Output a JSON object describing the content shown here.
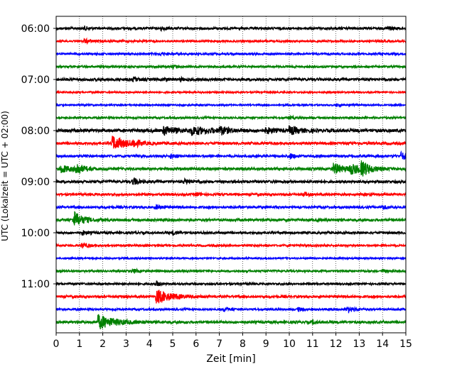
{
  "chart_data": {
    "type": "line",
    "xlabel": "Zeit  [min]",
    "ylabel": "UTC (Lokalzeit = UTC + 02:00)",
    "xlim": [
      0,
      15
    ],
    "x_ticks": [
      "0",
      "1",
      "2",
      "3",
      "4",
      "5",
      "6",
      "7",
      "8",
      "9",
      "10",
      "11",
      "12",
      "13",
      "14",
      "15"
    ],
    "y_tick_labels": [
      "06:00",
      "07:00",
      "08:00",
      "09:00",
      "10:00",
      "11:00"
    ],
    "grid": "vertical-dotted",
    "trace_interval_minutes": 15,
    "trace_colors": [
      "#000000",
      "#ff0000",
      "#0000ff",
      "#008000"
    ],
    "traces": [
      {
        "start": "06:00",
        "color": "#000000",
        "noise": 0.18,
        "events": [
          {
            "t": 1.2,
            "amp": 0.3,
            "dur": 0.15
          },
          {
            "t": 4.5,
            "amp": 0.25,
            "dur": 0.2
          },
          {
            "t": 14.2,
            "amp": 0.3,
            "dur": 0.2
          }
        ]
      },
      {
        "start": "06:15",
        "color": "#ff0000",
        "noise": 0.15,
        "events": [
          {
            "t": 1.2,
            "amp": 0.3,
            "dur": 0.3
          }
        ]
      },
      {
        "start": "06:30",
        "color": "#0000ff",
        "noise": 0.15,
        "events": [
          {
            "t": 4.5,
            "amp": 0.25,
            "dur": 0.15
          }
        ]
      },
      {
        "start": "06:45",
        "color": "#008000",
        "noise": 0.15,
        "events": [
          {
            "t": 5.0,
            "amp": 0.25,
            "dur": 0.2
          }
        ]
      },
      {
        "start": "07:00",
        "color": "#000000",
        "noise": 0.2,
        "events": [
          {
            "t": 3.3,
            "amp": 0.3,
            "dur": 0.2
          },
          {
            "t": 4.6,
            "amp": 0.25,
            "dur": 0.15
          },
          {
            "t": 5.3,
            "amp": 0.25,
            "dur": 0.15
          }
        ]
      },
      {
        "start": "07:15",
        "color": "#ff0000",
        "noise": 0.12,
        "events": []
      },
      {
        "start": "07:30",
        "color": "#0000ff",
        "noise": 0.12,
        "events": [
          {
            "t": 12.0,
            "amp": 0.2,
            "dur": 0.2
          }
        ]
      },
      {
        "start": "07:45",
        "color": "#008000",
        "noise": 0.15,
        "events": [
          {
            "t": 10.0,
            "amp": 0.25,
            "dur": 0.2
          }
        ]
      },
      {
        "start": "08:00",
        "color": "#000000",
        "noise": 0.25,
        "events": [
          {
            "t": 4.6,
            "amp": 0.65,
            "dur": 0.5
          },
          {
            "t": 5.8,
            "amp": 0.55,
            "dur": 0.8
          },
          {
            "t": 7.0,
            "amp": 0.6,
            "dur": 0.3
          },
          {
            "t": 9.0,
            "amp": 0.45,
            "dur": 0.3
          },
          {
            "t": 10.0,
            "amp": 0.6,
            "dur": 0.4
          }
        ]
      },
      {
        "start": "08:15",
        "color": "#ff0000",
        "noise": 0.2,
        "events": [
          {
            "t": 2.4,
            "amp": 1.1,
            "dur": 0.6
          },
          {
            "t": 3.3,
            "amp": 0.5,
            "dur": 0.2
          }
        ]
      },
      {
        "start": "08:30",
        "color": "#0000ff",
        "noise": 0.18,
        "events": [
          {
            "t": 4.9,
            "amp": 0.35,
            "dur": 0.2
          },
          {
            "t": 10.0,
            "amp": 0.45,
            "dur": 0.2
          },
          {
            "t": 14.8,
            "amp": 0.6,
            "dur": 0.3
          }
        ]
      },
      {
        "start": "08:45",
        "color": "#008000",
        "noise": 0.2,
        "events": [
          {
            "t": 0.2,
            "amp": 0.6,
            "dur": 0.4
          },
          {
            "t": 0.85,
            "amp": 1.0,
            "dur": 0.25
          },
          {
            "t": 11.9,
            "amp": 0.9,
            "dur": 0.4
          },
          {
            "t": 12.6,
            "amp": 0.7,
            "dur": 0.6
          },
          {
            "t": 13.1,
            "amp": 1.0,
            "dur": 0.3
          }
        ]
      },
      {
        "start": "09:00",
        "color": "#000000",
        "noise": 0.2,
        "events": [
          {
            "t": 3.3,
            "amp": 0.6,
            "dur": 0.2
          },
          {
            "t": 5.5,
            "amp": 0.3,
            "dur": 0.3
          }
        ]
      },
      {
        "start": "09:15",
        "color": "#ff0000",
        "noise": 0.18,
        "events": [
          {
            "t": 6.0,
            "amp": 0.3,
            "dur": 0.2
          },
          {
            "t": 10.6,
            "amp": 0.3,
            "dur": 0.2
          }
        ]
      },
      {
        "start": "09:30",
        "color": "#0000ff",
        "noise": 0.18,
        "events": [
          {
            "t": 4.3,
            "amp": 0.3,
            "dur": 0.2
          },
          {
            "t": 14.0,
            "amp": 0.3,
            "dur": 0.2
          }
        ]
      },
      {
        "start": "09:45",
        "color": "#008000",
        "noise": 0.2,
        "events": [
          {
            "t": 0.75,
            "amp": 1.4,
            "dur": 0.35
          }
        ]
      },
      {
        "start": "10:00",
        "color": "#000000",
        "noise": 0.18,
        "events": [
          {
            "t": 1.1,
            "amp": 0.35,
            "dur": 0.2
          },
          {
            "t": 5.0,
            "amp": 0.3,
            "dur": 0.2
          }
        ]
      },
      {
        "start": "10:15",
        "color": "#ff0000",
        "noise": 0.15,
        "events": [
          {
            "t": 1.1,
            "amp": 0.35,
            "dur": 0.3
          }
        ]
      },
      {
        "start": "10:30",
        "color": "#0000ff",
        "noise": 0.12,
        "events": []
      },
      {
        "start": "10:45",
        "color": "#008000",
        "noise": 0.15,
        "events": [
          {
            "t": 3.3,
            "amp": 0.3,
            "dur": 0.2
          },
          {
            "t": 14.0,
            "amp": 0.25,
            "dur": 0.15
          }
        ]
      },
      {
        "start": "11:00",
        "color": "#000000",
        "noise": 0.15,
        "events": [
          {
            "t": 4.3,
            "amp": 0.35,
            "dur": 0.2
          }
        ]
      },
      {
        "start": "11:15",
        "color": "#ff0000",
        "noise": 0.18,
        "events": [
          {
            "t": 4.3,
            "amp": 1.1,
            "dur": 0.6
          }
        ]
      },
      {
        "start": "11:30",
        "color": "#0000ff",
        "noise": 0.15,
        "events": [
          {
            "t": 7.2,
            "amp": 0.35,
            "dur": 0.2
          },
          {
            "t": 10.4,
            "amp": 0.3,
            "dur": 0.15
          },
          {
            "t": 12.5,
            "amp": 0.55,
            "dur": 0.25
          }
        ]
      },
      {
        "start": "11:45",
        "color": "#008000",
        "noise": 0.2,
        "events": [
          {
            "t": 1.8,
            "amp": 1.1,
            "dur": 0.7
          },
          {
            "t": 11.0,
            "amp": 0.25,
            "dur": 0.15
          }
        ]
      }
    ]
  }
}
